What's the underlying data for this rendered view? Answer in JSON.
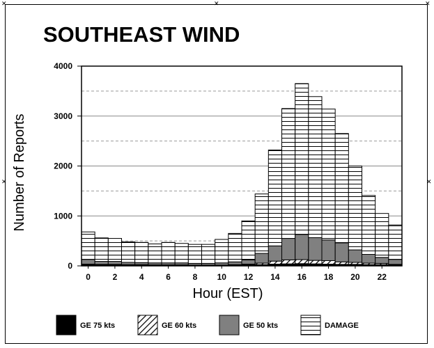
{
  "chart_data": {
    "type": "bar",
    "stacked": true,
    "title": "SOUTHEAST WIND",
    "xlabel": "Hour (EST)",
    "ylabel": "Number of Reports",
    "ylim": [
      0,
      4000
    ],
    "yticks": [
      0,
      1000,
      2000,
      3000,
      4000
    ],
    "xtick_labels": [
      "0",
      "2",
      "4",
      "6",
      "8",
      "10",
      "12",
      "14",
      "16",
      "18",
      "20",
      "22"
    ],
    "categories": [
      0,
      1,
      2,
      3,
      4,
      5,
      6,
      7,
      8,
      9,
      10,
      11,
      12,
      13,
      14,
      15,
      16,
      17,
      18,
      19,
      20,
      21,
      22,
      23
    ],
    "grid": "horizontal",
    "legend_position": "bottom",
    "series": [
      {
        "name": "GE 75 kts",
        "fill": "solid-black",
        "values": [
          25,
          20,
          20,
          15,
          15,
          10,
          10,
          10,
          10,
          10,
          10,
          15,
          20,
          25,
          35,
          40,
          45,
          40,
          35,
          30,
          30,
          25,
          25,
          20
        ]
      },
      {
        "name": "GE 60 kts",
        "fill": "diagonal-hatch",
        "values": [
          10,
          10,
          10,
          10,
          10,
          10,
          10,
          10,
          5,
          5,
          5,
          10,
          15,
          30,
          60,
          80,
          80,
          70,
          70,
          50,
          40,
          30,
          25,
          10
        ]
      },
      {
        "name": "GE 50 kts",
        "fill": "gray",
        "values": [
          95,
          60,
          60,
          45,
          40,
          40,
          40,
          40,
          35,
          35,
          45,
          55,
          85,
          195,
          305,
          430,
          505,
          455,
          415,
          380,
          250,
          175,
          120,
          100
        ]
      },
      {
        "name": "DAMAGE",
        "fill": "horizontal-lines",
        "values": [
          550,
          470,
          460,
          410,
          405,
          380,
          410,
          390,
          380,
          380,
          470,
          570,
          780,
          1190,
          1920,
          2600,
          3020,
          2825,
          2620,
          2190,
          1680,
          1180,
          880,
          690
        ]
      }
    ]
  }
}
